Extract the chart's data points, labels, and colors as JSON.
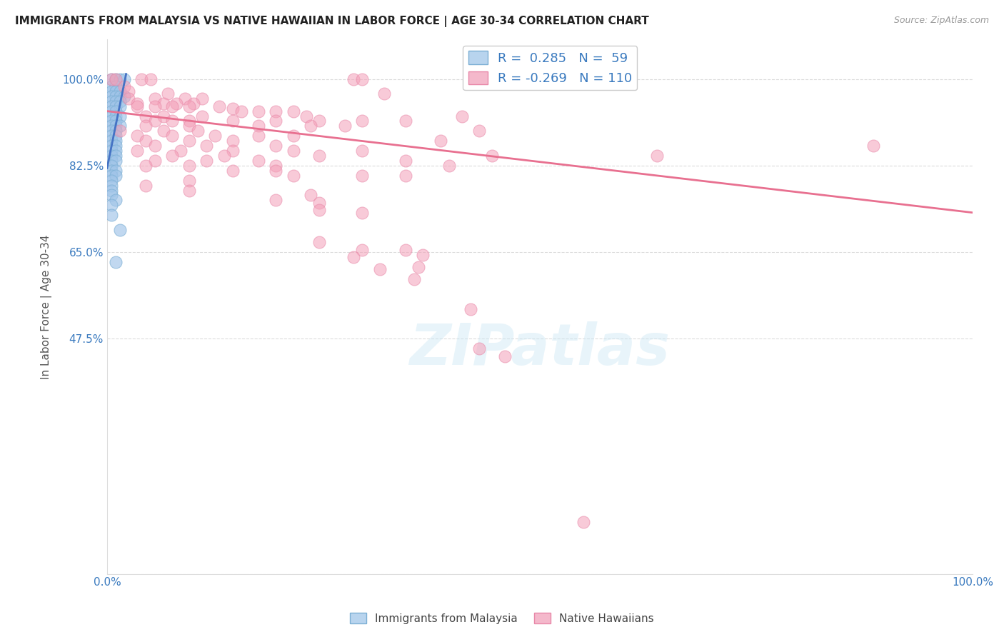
{
  "title": "IMMIGRANTS FROM MALAYSIA VS NATIVE HAWAIIAN IN LABOR FORCE | AGE 30-34 CORRELATION CHART",
  "source": "Source: ZipAtlas.com",
  "ylabel": "In Labor Force | Age 30-34",
  "xmin": 0.0,
  "xmax": 1.0,
  "ymin": 0.0,
  "ymax": 1.08,
  "yticks": [
    0.0,
    0.475,
    0.65,
    0.825,
    1.0
  ],
  "ytick_labels": [
    "",
    "47.5%",
    "65.0%",
    "82.5%",
    "100.0%"
  ],
  "blue_color": "#a0c4e8",
  "pink_color": "#f4a0b8",
  "blue_line_color": "#4472c4",
  "pink_line_color": "#e87090",
  "background_color": "#ffffff",
  "grid_color": "#cccccc",
  "malaysia_scatter": [
    [
      0.005,
      1.0
    ],
    [
      0.01,
      1.0
    ],
    [
      0.015,
      1.0
    ],
    [
      0.02,
      1.0
    ],
    [
      0.005,
      0.985
    ],
    [
      0.01,
      0.985
    ],
    [
      0.005,
      0.975
    ],
    [
      0.01,
      0.975
    ],
    [
      0.015,
      0.975
    ],
    [
      0.005,
      0.965
    ],
    [
      0.01,
      0.965
    ],
    [
      0.015,
      0.965
    ],
    [
      0.02,
      0.965
    ],
    [
      0.005,
      0.955
    ],
    [
      0.01,
      0.955
    ],
    [
      0.015,
      0.955
    ],
    [
      0.005,
      0.945
    ],
    [
      0.01,
      0.945
    ],
    [
      0.015,
      0.945
    ],
    [
      0.005,
      0.935
    ],
    [
      0.01,
      0.935
    ],
    [
      0.005,
      0.925
    ],
    [
      0.01,
      0.925
    ],
    [
      0.015,
      0.925
    ],
    [
      0.005,
      0.915
    ],
    [
      0.01,
      0.915
    ],
    [
      0.005,
      0.905
    ],
    [
      0.01,
      0.905
    ],
    [
      0.015,
      0.905
    ],
    [
      0.005,
      0.895
    ],
    [
      0.01,
      0.895
    ],
    [
      0.005,
      0.885
    ],
    [
      0.01,
      0.885
    ],
    [
      0.005,
      0.875
    ],
    [
      0.01,
      0.875
    ],
    [
      0.005,
      0.865
    ],
    [
      0.01,
      0.865
    ],
    [
      0.005,
      0.855
    ],
    [
      0.01,
      0.855
    ],
    [
      0.005,
      0.845
    ],
    [
      0.01,
      0.845
    ],
    [
      0.005,
      0.835
    ],
    [
      0.01,
      0.835
    ],
    [
      0.005,
      0.825
    ],
    [
      0.005,
      0.815
    ],
    [
      0.01,
      0.815
    ],
    [
      0.005,
      0.805
    ],
    [
      0.01,
      0.805
    ],
    [
      0.005,
      0.795
    ],
    [
      0.005,
      0.785
    ],
    [
      0.005,
      0.775
    ],
    [
      0.005,
      0.765
    ],
    [
      0.01,
      0.755
    ],
    [
      0.005,
      0.745
    ],
    [
      0.005,
      0.725
    ],
    [
      0.015,
      0.695
    ],
    [
      0.01,
      0.63
    ]
  ],
  "hawaii_scatter": [
    [
      0.005,
      1.0
    ],
    [
      0.01,
      1.0
    ],
    [
      0.04,
      1.0
    ],
    [
      0.05,
      1.0
    ],
    [
      0.285,
      1.0
    ],
    [
      0.295,
      1.0
    ],
    [
      0.02,
      0.985
    ],
    [
      0.025,
      0.975
    ],
    [
      0.07,
      0.97
    ],
    [
      0.32,
      0.97
    ],
    [
      0.025,
      0.96
    ],
    [
      0.055,
      0.96
    ],
    [
      0.09,
      0.96
    ],
    [
      0.11,
      0.96
    ],
    [
      0.035,
      0.95
    ],
    [
      0.065,
      0.95
    ],
    [
      0.08,
      0.95
    ],
    [
      0.1,
      0.95
    ],
    [
      0.035,
      0.945
    ],
    [
      0.055,
      0.945
    ],
    [
      0.075,
      0.945
    ],
    [
      0.095,
      0.945
    ],
    [
      0.13,
      0.945
    ],
    [
      0.145,
      0.94
    ],
    [
      0.155,
      0.935
    ],
    [
      0.175,
      0.935
    ],
    [
      0.195,
      0.935
    ],
    [
      0.215,
      0.935
    ],
    [
      0.045,
      0.925
    ],
    [
      0.065,
      0.925
    ],
    [
      0.11,
      0.925
    ],
    [
      0.23,
      0.925
    ],
    [
      0.41,
      0.925
    ],
    [
      0.055,
      0.915
    ],
    [
      0.075,
      0.915
    ],
    [
      0.095,
      0.915
    ],
    [
      0.145,
      0.915
    ],
    [
      0.195,
      0.915
    ],
    [
      0.245,
      0.915
    ],
    [
      0.295,
      0.915
    ],
    [
      0.345,
      0.915
    ],
    [
      0.045,
      0.905
    ],
    [
      0.095,
      0.905
    ],
    [
      0.175,
      0.905
    ],
    [
      0.235,
      0.905
    ],
    [
      0.275,
      0.905
    ],
    [
      0.015,
      0.895
    ],
    [
      0.065,
      0.895
    ],
    [
      0.105,
      0.895
    ],
    [
      0.43,
      0.895
    ],
    [
      0.035,
      0.885
    ],
    [
      0.075,
      0.885
    ],
    [
      0.125,
      0.885
    ],
    [
      0.175,
      0.885
    ],
    [
      0.215,
      0.885
    ],
    [
      0.045,
      0.875
    ],
    [
      0.095,
      0.875
    ],
    [
      0.145,
      0.875
    ],
    [
      0.385,
      0.875
    ],
    [
      0.055,
      0.865
    ],
    [
      0.115,
      0.865
    ],
    [
      0.195,
      0.865
    ],
    [
      0.885,
      0.865
    ],
    [
      0.035,
      0.855
    ],
    [
      0.085,
      0.855
    ],
    [
      0.145,
      0.855
    ],
    [
      0.215,
      0.855
    ],
    [
      0.295,
      0.855
    ],
    [
      0.075,
      0.845
    ],
    [
      0.135,
      0.845
    ],
    [
      0.245,
      0.845
    ],
    [
      0.445,
      0.845
    ],
    [
      0.635,
      0.845
    ],
    [
      0.055,
      0.835
    ],
    [
      0.115,
      0.835
    ],
    [
      0.175,
      0.835
    ],
    [
      0.345,
      0.835
    ],
    [
      0.045,
      0.825
    ],
    [
      0.095,
      0.825
    ],
    [
      0.195,
      0.825
    ],
    [
      0.395,
      0.825
    ],
    [
      0.145,
      0.815
    ],
    [
      0.195,
      0.815
    ],
    [
      0.215,
      0.805
    ],
    [
      0.295,
      0.805
    ],
    [
      0.345,
      0.805
    ],
    [
      0.095,
      0.795
    ],
    [
      0.045,
      0.785
    ],
    [
      0.095,
      0.775
    ],
    [
      0.235,
      0.765
    ],
    [
      0.195,
      0.755
    ],
    [
      0.245,
      0.75
    ],
    [
      0.245,
      0.735
    ],
    [
      0.295,
      0.73
    ],
    [
      0.245,
      0.67
    ],
    [
      0.295,
      0.655
    ],
    [
      0.345,
      0.655
    ],
    [
      0.365,
      0.645
    ],
    [
      0.285,
      0.64
    ],
    [
      0.36,
      0.62
    ],
    [
      0.315,
      0.615
    ],
    [
      0.355,
      0.595
    ],
    [
      0.42,
      0.535
    ],
    [
      0.43,
      0.455
    ],
    [
      0.46,
      0.44
    ],
    [
      0.55,
      0.105
    ]
  ]
}
